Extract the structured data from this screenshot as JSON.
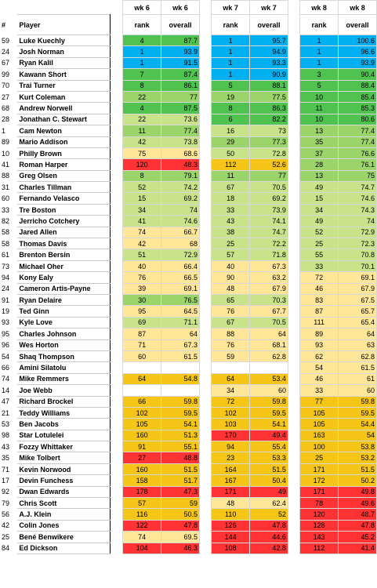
{
  "header": {
    "hash": "#",
    "player": "Player",
    "weeks": [
      {
        "week": "wk 6",
        "rank_label": "rank",
        "overall_label": "overall"
      },
      {
        "week": "wk 7",
        "rank_label": "rank",
        "overall_label": "overall"
      },
      {
        "week": "wk 8",
        "rank_label": "rank",
        "overall_label": "overall"
      }
    ]
  },
  "colors": {
    "blue": "#00b0f0",
    "green_dark": "#00b050",
    "green": "#4fc24f",
    "green_light": "#9bd46a",
    "yellow_green": "#c8e38a",
    "yellow": "#ffe699",
    "gold": "#f5c518",
    "orange": "#f0a030",
    "red": "#ff3333"
  },
  "rows": [
    {
      "num": "59",
      "name": "Luke Kuechly",
      "w6r": "4",
      "w6o": "87.7",
      "w7r": "1",
      "w7o": "95.7",
      "w8r": "1",
      "w8o": "100.6",
      "c6": "green",
      "c7": "blue",
      "c8": "blue"
    },
    {
      "num": "24",
      "name": "Josh Norman",
      "w6r": "1",
      "w6o": "93.9",
      "w7r": "1",
      "w7o": "94.9",
      "w8r": "1",
      "w8o": "96.6",
      "c6": "blue",
      "c7": "blue",
      "c8": "blue"
    },
    {
      "num": "67",
      "name": "Ryan Kalil",
      "w6r": "1",
      "w6o": "91.5",
      "w7r": "1",
      "w7o": "93.3",
      "w8r": "1",
      "w8o": "93.9",
      "c6": "blue",
      "c7": "blue",
      "c8": "blue"
    },
    {
      "num": "99",
      "name": "Kawann Short",
      "w6r": "7",
      "w6o": "87.4",
      "w7r": "1",
      "w7o": "90.9",
      "w8r": "3",
      "w8o": "90.4",
      "c6": "green",
      "c7": "blue",
      "c8": "green"
    },
    {
      "num": "70",
      "name": "Trai Turner",
      "w6r": "8",
      "w6o": "86.1",
      "w7r": "5",
      "w7o": "88.1",
      "w8r": "5",
      "w8o": "88.4",
      "c6": "green",
      "c7": "green",
      "c8": "green"
    },
    {
      "num": "27",
      "name": "Kurt Coleman",
      "w6r": "22",
      "w6o": "77",
      "w7r": "19",
      "w7o": "77.5",
      "w8r": "10",
      "w8o": "85.4",
      "c6": "green_light",
      "c7": "green_light",
      "c8": "green"
    },
    {
      "num": "68",
      "name": "Andrew Norwell",
      "w6r": "4",
      "w6o": "87.5",
      "w7r": "8",
      "w7o": "86.3",
      "w8r": "11",
      "w8o": "85.3",
      "c6": "green",
      "c7": "green",
      "c8": "green"
    },
    {
      "num": "28",
      "name": "Jonathan C. Stewart",
      "w6r": "22",
      "w6o": "73.6",
      "w7r": "6",
      "w7o": "82.2",
      "w8r": "10",
      "w8o": "80.6",
      "c6": "yellow_green",
      "c7": "green",
      "c8": "green"
    },
    {
      "num": "1",
      "name": "Cam Newton",
      "w6r": "11",
      "w6o": "77.4",
      "w7r": "16",
      "w7o": "73",
      "w8r": "13",
      "w8o": "77.4",
      "c6": "green_light",
      "c7": "yellow_green",
      "c8": "green_light"
    },
    {
      "num": "89",
      "name": "Mario Addison",
      "w6r": "42",
      "w6o": "73.8",
      "w7r": "29",
      "w7o": "77.3",
      "w8r": "35",
      "w8o": "77.4",
      "c6": "yellow_green",
      "c7": "green_light",
      "c8": "green_light"
    },
    {
      "num": "10",
      "name": "Philly Brown",
      "w6r": "75",
      "w6o": "68.6",
      "w7r": "50",
      "w7o": "72.8",
      "w8r": "37",
      "w8o": "76.6",
      "c6": "yellow",
      "c7": "yellow_green",
      "c8": "green_light"
    },
    {
      "num": "41",
      "name": "Roman Harper",
      "w6r": "120",
      "w6o": "48.3",
      "w7r": "112",
      "w7o": "52.6",
      "w8r": "28",
      "w8o": "76.1",
      "c6": "red",
      "c7": "gold",
      "c8": "green_light"
    },
    {
      "num": "88",
      "name": "Greg Olsen",
      "w6r": "8",
      "w6o": "79.1",
      "w7r": "11",
      "w7o": "77",
      "w8r": "13",
      "w8o": "75",
      "c6": "green_light",
      "c7": "green_light",
      "c8": "green_light"
    },
    {
      "num": "31",
      "name": "Charles Tillman",
      "w6r": "52",
      "w6o": "74.2",
      "w7r": "67",
      "w7o": "70.5",
      "w8r": "49",
      "w8o": "74.7",
      "c6": "yellow_green",
      "c7": "yellow_green",
      "c8": "yellow_green"
    },
    {
      "num": "60",
      "name": "Fernando Velasco",
      "w6r": "15",
      "w6o": "69.2",
      "w7r": "18",
      "w7o": "69.2",
      "w8r": "15",
      "w8o": "74.6",
      "c6": "yellow_green",
      "c7": "yellow_green",
      "c8": "yellow_green"
    },
    {
      "num": "33",
      "name": "Tre Boston",
      "w6r": "34",
      "w6o": "74",
      "w7r": "33",
      "w7o": "73.9",
      "w8r": "34",
      "w8o": "74.3",
      "c6": "yellow_green",
      "c7": "yellow_green",
      "c8": "yellow_green"
    },
    {
      "num": "82",
      "name": "Jerricho Cotchery",
      "w6r": "41",
      "w6o": "74.6",
      "w7r": "43",
      "w7o": "74.1",
      "w8r": "49",
      "w8o": "74",
      "c6": "yellow_green",
      "c7": "yellow_green",
      "c8": "yellow_green"
    },
    {
      "num": "58",
      "name": "Jared Allen",
      "w6r": "74",
      "w6o": "66.7",
      "w7r": "38",
      "w7o": "74.7",
      "w8r": "52",
      "w8o": "72.9",
      "c6": "yellow",
      "c7": "yellow_green",
      "c8": "yellow_green"
    },
    {
      "num": "58",
      "name": "Thomas Davis",
      "w6r": "42",
      "w6o": "68",
      "w7r": "25",
      "w7o": "72.2",
      "w8r": "25",
      "w8o": "72.3",
      "c6": "yellow",
      "c7": "yellow_green",
      "c8": "yellow_green"
    },
    {
      "num": "61",
      "name": "Brenton Bersin",
      "w6r": "51",
      "w6o": "72.9",
      "w7r": "57",
      "w7o": "71.8",
      "w8r": "55",
      "w8o": "70.8",
      "c6": "yellow_green",
      "c7": "yellow_green",
      "c8": "yellow_green"
    },
    {
      "num": "73",
      "name": "Michael Oher",
      "w6r": "40",
      "w6o": "66.4",
      "w7r": "40",
      "w7o": "67.3",
      "w8r": "33",
      "w8o": "70.1",
      "c6": "yellow",
      "c7": "yellow",
      "c8": "yellow_green"
    },
    {
      "num": "94",
      "name": "Kony Ealy",
      "w6r": "76",
      "w6o": "66.5",
      "w7r": "90",
      "w7o": "63.2",
      "w8r": "72",
      "w8o": "69.1",
      "c6": "yellow",
      "c7": "yellow",
      "c8": "yellow"
    },
    {
      "num": "24",
      "name": "Cameron Artis-Payne",
      "w6r": "39",
      "w6o": "69.1",
      "w7r": "48",
      "w7o": "67.9",
      "w8r": "46",
      "w8o": "67.9",
      "c6": "yellow",
      "c7": "yellow",
      "c8": "yellow"
    },
    {
      "num": "91",
      "name": "Ryan Delaire",
      "w6r": "30",
      "w6o": "76.5",
      "w7r": "65",
      "w7o": "70.3",
      "w8r": "83",
      "w8o": "67.5",
      "c6": "green_light",
      "c7": "yellow_green",
      "c8": "yellow"
    },
    {
      "num": "19",
      "name": "Ted Ginn",
      "w6r": "95",
      "w6o": "64.5",
      "w7r": "76",
      "w7o": "67.7",
      "w8r": "87",
      "w8o": "65.7",
      "c6": "yellow",
      "c7": "yellow",
      "c8": "yellow"
    },
    {
      "num": "93",
      "name": "Kyle Love",
      "w6r": "69",
      "w6o": "71.1",
      "w7r": "67",
      "w7o": "70.5",
      "w8r": "111",
      "w8o": "65.4",
      "c6": "yellow_green",
      "c7": "yellow_green",
      "c8": "yellow"
    },
    {
      "num": "95",
      "name": "Charles Johnson",
      "w6r": "87",
      "w6o": "64",
      "w7r": "88",
      "w7o": "64",
      "w8r": "89",
      "w8o": "64",
      "c6": "yellow",
      "c7": "yellow",
      "c8": "yellow"
    },
    {
      "num": "96",
      "name": "Wes Horton",
      "w6r": "71",
      "w6o": "67.3",
      "w7r": "76",
      "w7o": "68.1",
      "w8r": "93",
      "w8o": "63",
      "c6": "yellow",
      "c7": "yellow",
      "c8": "yellow"
    },
    {
      "num": "54",
      "name": "Shaq Thompson",
      "w6r": "60",
      "w6o": "61.5",
      "w7r": "59",
      "w7o": "62.8",
      "w8r": "62",
      "w8o": "62.8",
      "c6": "yellow",
      "c7": "yellow",
      "c8": "yellow"
    },
    {
      "num": "66",
      "name": "Amini Silatolu",
      "w6r": "",
      "w6o": "",
      "w7r": "",
      "w7o": "",
      "w8r": "54",
      "w8o": "61.5",
      "c6": "none",
      "c7": "none",
      "c8": "yellow"
    },
    {
      "num": "74",
      "name": "Mike Remmers",
      "w6r": "64",
      "w6o": "54.8",
      "w7r": "64",
      "w7o": "53.4",
      "w8r": "46",
      "w8o": "61",
      "c6": "gold",
      "c7": "gold",
      "c8": "yellow"
    },
    {
      "num": "14",
      "name": "Joe Webb",
      "w6r": "",
      "w6o": "",
      "w7r": "34",
      "w7o": "60",
      "w8r": "33",
      "w8o": "60",
      "c6": "none",
      "c7": "yellow",
      "c8": "yellow"
    },
    {
      "num": "47",
      "name": "Richard Brockel",
      "w6r": "66",
      "w6o": "59.8",
      "w7r": "72",
      "w7o": "59.8",
      "w8r": "77",
      "w8o": "59.8",
      "c6": "gold",
      "c7": "gold",
      "c8": "gold"
    },
    {
      "num": "21",
      "name": "Teddy Williams",
      "w6r": "102",
      "w6o": "59.5",
      "w7r": "102",
      "w7o": "59.5",
      "w8r": "105",
      "w8o": "59.5",
      "c6": "gold",
      "c7": "gold",
      "c8": "gold"
    },
    {
      "num": "53",
      "name": "Ben Jacobs",
      "w6r": "105",
      "w6o": "54.1",
      "w7r": "103",
      "w7o": "54.1",
      "w8r": "105",
      "w8o": "54.4",
      "c6": "gold",
      "c7": "gold",
      "c8": "gold"
    },
    {
      "num": "98",
      "name": "Star Lotulelei",
      "w6r": "160",
      "w6o": "51.3",
      "w7r": "170",
      "w7o": "49.4",
      "w8r": "163",
      "w8o": "54",
      "c6": "gold",
      "c7": "red",
      "c8": "gold"
    },
    {
      "num": "43",
      "name": "Fozzy Whittaker",
      "w6r": "91",
      "w6o": "55.1",
      "w7r": "94",
      "w7o": "55.4",
      "w8r": "100",
      "w8o": "53.8",
      "c6": "gold",
      "c7": "gold",
      "c8": "gold"
    },
    {
      "num": "35",
      "name": "Mike Tolbert",
      "w6r": "27",
      "w6o": "48.8",
      "w7r": "23",
      "w7o": "53.3",
      "w8r": "25",
      "w8o": "53.2",
      "c6": "red",
      "c7": "gold",
      "c8": "gold"
    },
    {
      "num": "71",
      "name": "Kevin Norwood",
      "w6r": "160",
      "w6o": "51.5",
      "w7r": "164",
      "w7o": "51.5",
      "w8r": "171",
      "w8o": "51.5",
      "c6": "gold",
      "c7": "gold",
      "c8": "gold"
    },
    {
      "num": "17",
      "name": "Devin Funchess",
      "w6r": "158",
      "w6o": "51.7",
      "w7r": "167",
      "w7o": "50.4",
      "w8r": "172",
      "w8o": "50.2",
      "c6": "gold",
      "c7": "gold",
      "c8": "gold"
    },
    {
      "num": "92",
      "name": "Dwan Edwards",
      "w6r": "178",
      "w6o": "47.3",
      "w7r": "171",
      "w7o": "49",
      "w8r": "171",
      "w8o": "49.8",
      "c6": "red",
      "c7": "red",
      "c8": "red"
    },
    {
      "num": "79",
      "name": "Chris Scott",
      "w6r": "57",
      "w6o": "59",
      "w7r": "48",
      "w7o": "62.4",
      "w8r": "78",
      "w8o": "49.6",
      "c6": "gold",
      "c7": "yellow",
      "c8": "red"
    },
    {
      "num": "56",
      "name": "A.J. Klein",
      "w6r": "116",
      "w6o": "50.5",
      "w7r": "110",
      "w7o": "52",
      "w8r": "120",
      "w8o": "48.7",
      "c6": "gold",
      "c7": "gold",
      "c8": "red"
    },
    {
      "num": "42",
      "name": "Colin Jones",
      "w6r": "122",
      "w6o": "47.8",
      "w7r": "126",
      "w7o": "47.8",
      "w8r": "128",
      "w8o": "47.8",
      "c6": "red",
      "c7": "red",
      "c8": "red"
    },
    {
      "num": "25",
      "name": "Bené Benwikere",
      "w6r": "74",
      "w6o": "69.5",
      "w7r": "144",
      "w7o": "44.6",
      "w8r": "143",
      "w8o": "45.2",
      "c6": "yellow",
      "c7": "red",
      "c8": "red"
    },
    {
      "num": "84",
      "name": "Ed Dickson",
      "w6r": "104",
      "w6o": "46.3",
      "w7r": "108",
      "w7o": "42.8",
      "w8r": "112",
      "w8o": "41.4",
      "c6": "red",
      "c7": "red",
      "c8": "red"
    }
  ]
}
